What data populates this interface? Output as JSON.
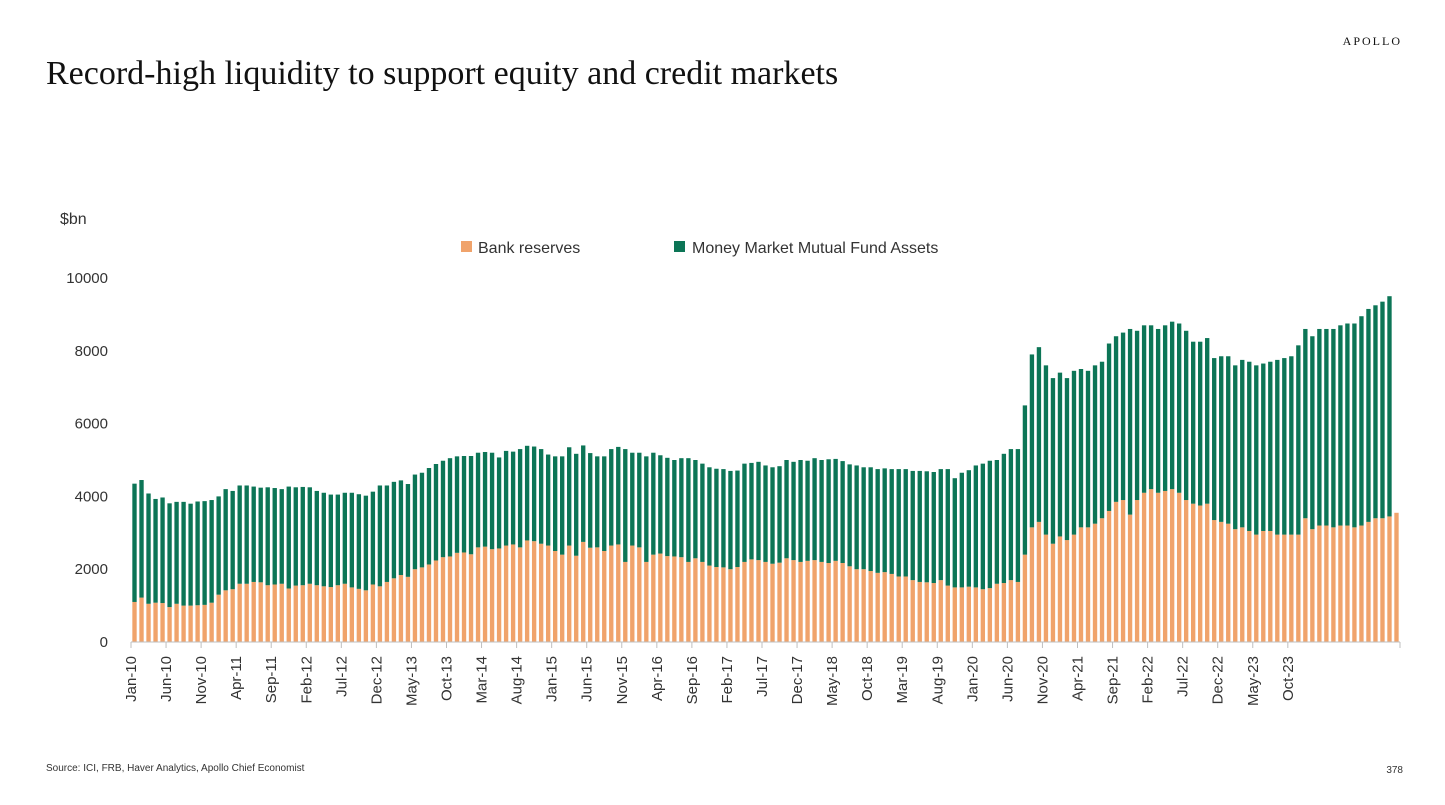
{
  "brand": "APOLLO",
  "title": "Record-high liquidity to support equity and credit markets",
  "footnote": "Source: ICI, FRB, Haver Analytics, Apollo Chief Economist",
  "page_number": "378",
  "colors": {
    "bank_reserves": "#f0a36b",
    "mmf_assets": "#0c7556"
  },
  "chart_data": {
    "type": "bar",
    "stacked": true,
    "title": "Record-high liquidity to support equity and credit markets",
    "ylabel": "$bn",
    "xlabel": "",
    "ylim": [
      0,
      10000
    ],
    "yticks": [
      0,
      2000,
      4000,
      6000,
      8000,
      10000
    ],
    "legend_position": "top-center",
    "tick_labels": [
      "Jan-10",
      "Jun-10",
      "Nov-10",
      "Apr-11",
      "Sep-11",
      "Feb-12",
      "Jul-12",
      "Dec-12",
      "May-13",
      "Oct-13",
      "Mar-14",
      "Aug-14",
      "Jan-15",
      "Jun-15",
      "Nov-15",
      "Apr-16",
      "Sep-16",
      "Feb-17",
      "Jul-17",
      "Dec-17",
      "May-18",
      "Oct-18",
      "Mar-19",
      "Aug-19",
      "Jan-20",
      "Jun-20",
      "Nov-20",
      "Apr-21",
      "Sep-21",
      "Feb-22",
      "Jul-22",
      "Dec-22",
      "May-23",
      "Oct-23"
    ],
    "tick_every_n_months": 5,
    "start_month": "Jan-10",
    "series": [
      {
        "name": "Bank reserves",
        "color": "#f0a36b",
        "values": [
          1100,
          1220,
          1050,
          1080,
          1070,
          960,
          1050,
          1000,
          1000,
          1010,
          1020,
          1080,
          1300,
          1420,
          1450,
          1600,
          1600,
          1650,
          1640,
          1560,
          1580,
          1600,
          1470,
          1550,
          1560,
          1600,
          1560,
          1530,
          1510,
          1560,
          1600,
          1500,
          1460,
          1420,
          1580,
          1530,
          1650,
          1750,
          1840,
          1790,
          2000,
          2050,
          2130,
          2240,
          2330,
          2350,
          2450,
          2460,
          2410,
          2600,
          2620,
          2550,
          2570,
          2650,
          2680,
          2600,
          2790,
          2770,
          2700,
          2650,
          2500,
          2400,
          2650,
          2370,
          2750,
          2590,
          2600,
          2500,
          2650,
          2680,
          2200,
          2650,
          2600,
          2200,
          2400,
          2430,
          2360,
          2350,
          2330,
          2200,
          2300,
          2200,
          2100,
          2060,
          2050,
          2000,
          2060,
          2200,
          2270,
          2250,
          2200,
          2150,
          2180,
          2300,
          2250,
          2200,
          2230,
          2250,
          2200,
          2170,
          2230,
          2170,
          2080,
          2000,
          2000,
          1950,
          1900,
          1920,
          1870,
          1800,
          1800,
          1700,
          1650,
          1640,
          1620,
          1700,
          1550,
          1500,
          1500,
          1520,
          1500,
          1450,
          1480,
          1600,
          1620,
          1700,
          1650,
          2400,
          3150,
          3300,
          2950,
          2700,
          2900,
          2800,
          2950,
          3150,
          3150,
          3250,
          3400,
          3600,
          3850,
          3900,
          3500,
          3900,
          4100,
          4200,
          4100,
          4150,
          4200,
          4100,
          3900,
          3800,
          3750,
          3800,
          3350,
          3300,
          3250,
          3100,
          3150,
          3050,
          2950,
          3050,
          3050,
          2950,
          2950,
          2950,
          2950,
          3400,
          3100,
          3200,
          3200,
          3150,
          3200,
          3200,
          3150,
          3200,
          3300,
          3400,
          3400,
          3450,
          3550
        ]
      },
      {
        "name": "Money Market Mutual Fund Assets",
        "color": "#0c7556",
        "values": [
          3250,
          3230,
          3030,
          2850,
          2900,
          2850,
          2800,
          2850,
          2800,
          2850,
          2850,
          2820,
          2700,
          2780,
          2700,
          2700,
          2700,
          2620,
          2600,
          2690,
          2650,
          2600,
          2800,
          2700,
          2700,
          2650,
          2590,
          2570,
          2540,
          2490,
          2500,
          2600,
          2600,
          2600,
          2550,
          2770,
          2650,
          2650,
          2600,
          2550,
          2600,
          2600,
          2650,
          2650,
          2650,
          2700,
          2650,
          2650,
          2700,
          2600,
          2600,
          2650,
          2500,
          2600,
          2550,
          2700,
          2600,
          2600,
          2600,
          2500,
          2600,
          2700,
          2700,
          2800,
          2650,
          2600,
          2500,
          2600,
          2650,
          2680,
          3100,
          2550,
          2600,
          2900,
          2800,
          2700,
          2700,
          2650,
          2720,
          2850,
          2700,
          2700,
          2700,
          2700,
          2700,
          2700,
          2650,
          2700,
          2650,
          2700,
          2650,
          2650,
          2650,
          2700,
          2700,
          2800,
          2750,
          2800,
          2800,
          2850,
          2800,
          2800,
          2800,
          2850,
          2800,
          2850,
          2850,
          2850,
          2880,
          2950,
          2950,
          3000,
          3050,
          3050,
          3050,
          3050,
          3200,
          3000,
          3150,
          3200,
          3350,
          3450,
          3500,
          3400,
          3550,
          3600,
          3650,
          4100,
          4750,
          4800,
          4650,
          4550,
          4500,
          4450,
          4500,
          4350,
          4300,
          4350,
          4300,
          4600,
          4550,
          4600,
          5100,
          4650,
          4600,
          4500,
          4500,
          4550,
          4600,
          4650,
          4650,
          4450,
          4500,
          4550,
          4450,
          4550,
          4600,
          4500,
          4600,
          4650,
          4650,
          4600,
          4650,
          4800,
          4850,
          4900,
          5200,
          5200,
          5300,
          5400,
          5400,
          5450,
          5500,
          5550,
          5600,
          5750,
          5850,
          5850,
          5950,
          6050
        ]
      }
    ]
  }
}
